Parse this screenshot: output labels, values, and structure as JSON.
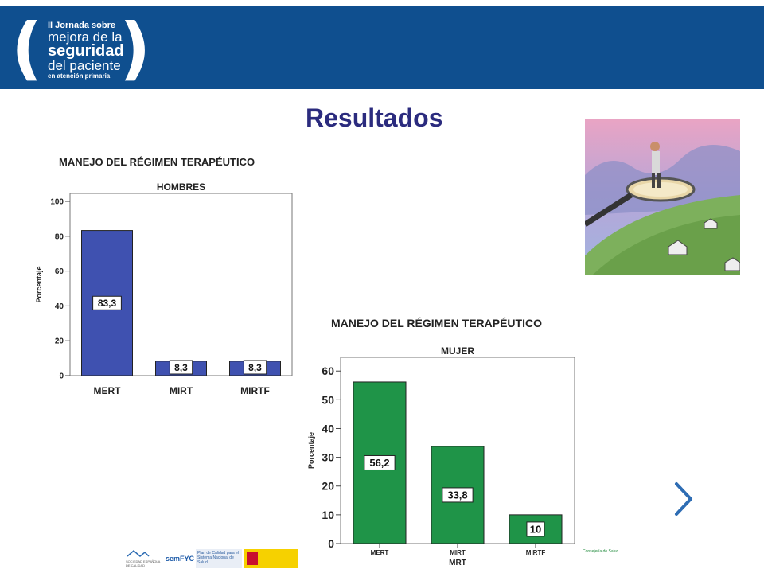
{
  "header": {
    "logo": {
      "line1": "II Jornada sobre",
      "line2": "mejora de la",
      "line3": "seguridad",
      "line4": "del paciente",
      "line5": "en atención primaria"
    },
    "colors": {
      "banner": "#0f4f8f",
      "title": "#2b2b7e"
    }
  },
  "page": {
    "title": "Resultados"
  },
  "chart_data": [
    {
      "type": "bar",
      "title": "MANEJO DEL RÉGIMEN TERAPÉUTICO",
      "subtitle": "HOMBRES",
      "ylabel": "Porcentaje",
      "xlabel": "",
      "categories": [
        "MERT",
        "MIRT",
        "MIRTF"
      ],
      "values": [
        83.3,
        8.3,
        8.3
      ],
      "data_labels": [
        "83,3",
        "8,3",
        "8,3"
      ],
      "yticks": [
        0,
        20,
        40,
        60,
        80,
        100
      ],
      "ylim": [
        0,
        100
      ],
      "grid": false,
      "color": "#3f51b0"
    },
    {
      "type": "bar",
      "title": "MANEJO DEL RÉGIMEN TERAPÉUTICO",
      "subtitle": "MUJER",
      "ylabel": "Porcentaje",
      "xlabel": "MRT",
      "categories": [
        "MERT",
        "MIRT",
        "MIRTF"
      ],
      "values": [
        56.2,
        33.8,
        10
      ],
      "data_labels": [
        "56,2",
        "33,8",
        "10"
      ],
      "yticks": [
        0,
        10,
        20,
        30,
        40,
        50,
        60
      ],
      "ylim": [
        0,
        62
      ],
      "grid": false,
      "color": "#1f9448"
    }
  ],
  "photo": {
    "icon": "magnifier-over-village-illustration"
  },
  "nav": {
    "next_icon": "chevron-right-icon",
    "color": "#2e6db4"
  },
  "footer": {
    "logos": [
      {
        "name": "sociedad-espanola-calidad-asistencial-logo",
        "text": "SOCIEDAD ESPAÑOLA DE CALIDAD ASISTENCIAL"
      },
      {
        "name": "semfyc-logo",
        "text": "semFYC"
      },
      {
        "name": "plan-de-calidad-logo",
        "text": "Plan de Calidad para el Sistema Nacional de Salud"
      },
      {
        "name": "ministerio-de-sanidad-logo",
        "text": ""
      },
      {
        "name": "junta-de-andalucia-logo",
        "text": "Consejería de Salud"
      }
    ]
  }
}
